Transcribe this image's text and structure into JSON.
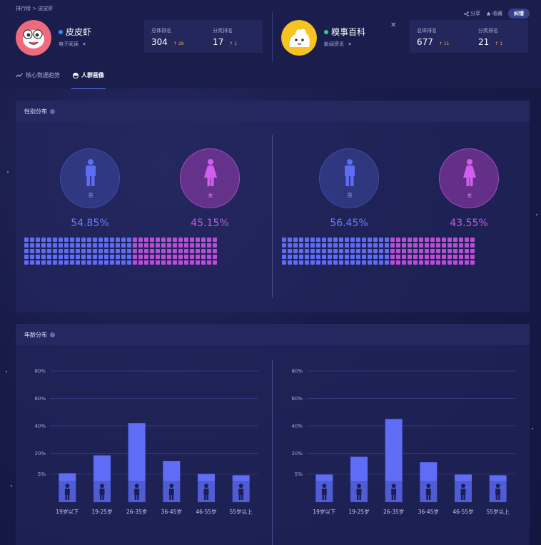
{
  "breadcrumb": "排行榜 > 皮皮虾",
  "actions": {
    "share": "分享",
    "favorite": "收藏",
    "report": "纠错"
  },
  "accounts": [
    {
      "name": "皮皮虾",
      "category": "电子阅读",
      "status_color": "#2f8dff",
      "total_rank_label": "总体排名",
      "total_rank": "304",
      "total_change": "29",
      "cat_rank_label": "分类排名",
      "cat_rank": "17",
      "cat_change": "1"
    },
    {
      "name": "糗事百科",
      "category": "新闻资讯",
      "status_color": "#2fd07a",
      "total_rank_label": "总体排名",
      "total_rank": "677",
      "total_change": "11",
      "cat_rank_label": "分类排名",
      "cat_rank": "21",
      "cat_change": "1"
    }
  ],
  "tabs": [
    {
      "label": "核心数据趋势",
      "icon": "trend-icon",
      "active": false
    },
    {
      "label": "人群画像",
      "icon": "portrait-icon",
      "active": true
    }
  ],
  "gender": {
    "title": "性别分布",
    "male_label": "男",
    "female_label": "女",
    "male_color": "#5f6cf6",
    "female_color": "#bb4ed7",
    "apps": [
      {
        "male_pct": "54.85%",
        "female_pct": "45.15%",
        "male_share": 0.5485
      },
      {
        "male_pct": "56.45%",
        "female_pct": "43.55%",
        "male_share": 0.5645
      }
    ]
  },
  "age": {
    "title": "年龄分布",
    "bar_color": "#5f6cf6",
    "chart_data": [
      {
        "type": "bar",
        "categories": [
          "19岁以下",
          "19-25岁",
          "26-35岁",
          "36-45岁",
          "46-55岁",
          "55岁以上"
        ],
        "values": [
          5.5,
          18.5,
          42,
          14.5,
          5,
          4
        ],
        "y_ticks": [
          "80%",
          "60%",
          "40%",
          "20%",
          "5%"
        ],
        "y_tick_values": [
          80,
          60,
          40,
          20,
          5
        ],
        "ylim": [
          0,
          80
        ],
        "grid": true
      },
      {
        "type": "bar",
        "categories": [
          "19岁以下",
          "19-25岁",
          "26-35岁",
          "36-45岁",
          "46-55岁",
          "55岁以上"
        ],
        "values": [
          4.5,
          17.5,
          45,
          13.5,
          4.5,
          4
        ],
        "y_ticks": [
          "80%",
          "60%",
          "40%",
          "20%",
          "5%"
        ],
        "y_tick_values": [
          80,
          60,
          40,
          20,
          5
        ],
        "ylim": [
          0,
          80
        ],
        "grid": true
      }
    ]
  }
}
